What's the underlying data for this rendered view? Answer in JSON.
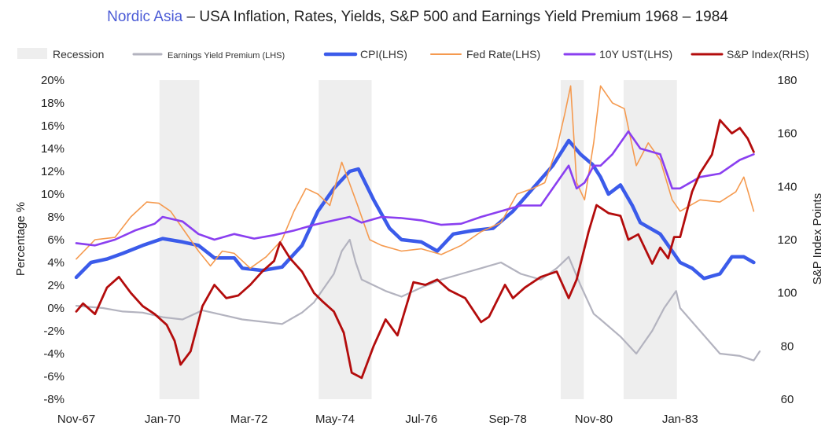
{
  "title": {
    "brand": "Nordic Asia",
    "rest": " – USA Inflation, Rates, Yields, S&P 500 and Earnings Yield Premium 1968 – 1984"
  },
  "legend": [
    {
      "key": "recession",
      "label": "Recession"
    },
    {
      "key": "eyp",
      "label": "Earnings Yield Premium (LHS)"
    },
    {
      "key": "cpi",
      "label": "CPI(LHS)"
    },
    {
      "key": "fed",
      "label": "Fed Rate(LHS)"
    },
    {
      "key": "ust",
      "label": "10Y UST(LHS)"
    },
    {
      "key": "sp",
      "label": "S&P Index(RHS)"
    }
  ],
  "colors": {
    "recession": "#eeeeee",
    "eyp": "#b3b3bf",
    "cpi": "#3b5bea",
    "fed": "#f59a4f",
    "ust": "#8a3ff0",
    "sp": "#b30c0c",
    "text": "#222222"
  },
  "chart_data": {
    "type": "line",
    "title": "USA Inflation, Rates, Yields, S&P 500 and Earnings Yield Premium 1968 – 1984",
    "ylabel": "Percentage %",
    "y2label": "S&P Index Points",
    "ylim": [
      -8,
      20
    ],
    "y2lim": [
      60,
      180
    ],
    "xlim": [
      1967.83,
      1985.0
    ],
    "grid": false,
    "legend_position": "top",
    "x_ticks": [
      {
        "label": "Nov-67",
        "x": 1967.83
      },
      {
        "label": "Jan-70",
        "x": 1970.0
      },
      {
        "label": "Mar-72",
        "x": 1972.17
      },
      {
        "label": "May-74",
        "x": 1974.33
      },
      {
        "label": "Jul-76",
        "x": 1976.5
      },
      {
        "label": "Sep-78",
        "x": 1978.67
      },
      {
        "label": "Nov-80",
        "x": 1980.83
      },
      {
        "label": "Jan-83",
        "x": 1983.0
      }
    ],
    "y_ticks": [
      "-8%",
      "-6%",
      "-4%",
      "-2%",
      "0%",
      "2%",
      "4%",
      "6%",
      "8%",
      "10%",
      "12%",
      "14%",
      "16%",
      "18%",
      "20%"
    ],
    "y2_ticks": [
      "60",
      "80",
      "100",
      "120",
      "140",
      "160",
      "180"
    ],
    "recessions": [
      [
        1969.92,
        1970.92
      ],
      [
        1973.92,
        1975.25
      ],
      [
        1980.0,
        1980.58
      ],
      [
        1981.58,
        1982.92
      ]
    ],
    "series": [
      {
        "name": "Earnings Yield Premium (LHS)",
        "axis": "left",
        "x": [
          1967.83,
          1968.5,
          1969.0,
          1969.5,
          1970.0,
          1970.5,
          1971.0,
          1971.5,
          1972.0,
          1972.5,
          1973.0,
          1973.5,
          1973.8,
          1974.0,
          1974.3,
          1974.5,
          1974.7,
          1974.85,
          1975.0,
          1975.3,
          1975.6,
          1976.0,
          1976.5,
          1977.0,
          1977.5,
          1978.0,
          1978.5,
          1979.0,
          1979.5,
          1979.9,
          1980.2,
          1980.5,
          1980.83,
          1981.0,
          1981.5,
          1981.9,
          1982.3,
          1982.6,
          1982.9,
          1983.0,
          1983.5,
          1984.0,
          1984.5,
          1984.85,
          1985.0
        ],
        "values": [
          0.2,
          0.0,
          -0.3,
          -0.4,
          -0.8,
          -1.0,
          -0.2,
          -0.6,
          -1.0,
          -1.2,
          -1.4,
          -0.4,
          0.5,
          1.5,
          3.0,
          5.0,
          6.0,
          4.0,
          2.5,
          2.0,
          1.5,
          1.0,
          1.8,
          2.5,
          3.0,
          3.5,
          4.0,
          3.0,
          2.5,
          3.5,
          4.5,
          2.0,
          -0.5,
          -1.0,
          -2.5,
          -4.0,
          -2.0,
          0.0,
          1.5,
          0.0,
          -2.0,
          -4.0,
          -4.2,
          -4.6,
          -3.8
        ]
      },
      {
        "name": "CPI(LHS)",
        "axis": "left",
        "x": [
          1967.83,
          1968.2,
          1968.6,
          1969.0,
          1969.5,
          1970.0,
          1970.5,
          1970.9,
          1971.3,
          1971.8,
          1972.0,
          1972.5,
          1973.0,
          1973.5,
          1973.9,
          1974.3,
          1974.7,
          1974.92,
          1975.3,
          1975.7,
          1976.0,
          1976.5,
          1976.9,
          1977.3,
          1977.8,
          1978.3,
          1978.8,
          1979.3,
          1979.8,
          1980.2,
          1980.5,
          1980.8,
          1981.0,
          1981.2,
          1981.5,
          1981.8,
          1982.0,
          1982.5,
          1982.8,
          1983.0,
          1983.3,
          1983.6,
          1984.0,
          1984.3,
          1984.6,
          1984.85
        ],
        "values": [
          2.7,
          4.0,
          4.3,
          4.8,
          5.5,
          6.1,
          5.8,
          5.5,
          4.4,
          4.4,
          3.5,
          3.3,
          3.6,
          5.5,
          8.5,
          10.5,
          12.0,
          12.2,
          9.5,
          7.0,
          6.0,
          5.8,
          5.0,
          6.5,
          6.8,
          7.0,
          8.5,
          10.5,
          12.5,
          14.7,
          13.5,
          12.6,
          11.5,
          10.0,
          10.8,
          9.0,
          7.5,
          6.5,
          5.0,
          4.0,
          3.5,
          2.6,
          3.0,
          4.5,
          4.5,
          4.0
        ]
      },
      {
        "name": "Fed Rate(LHS)",
        "axis": "left",
        "x": [
          1967.83,
          1968.3,
          1968.8,
          1969.2,
          1969.6,
          1969.9,
          1970.2,
          1970.5,
          1970.9,
          1971.2,
          1971.5,
          1971.8,
          1972.2,
          1972.6,
          1973.0,
          1973.3,
          1973.6,
          1973.9,
          1974.2,
          1974.5,
          1974.9,
          1975.2,
          1975.5,
          1976.0,
          1976.5,
          1977.0,
          1977.5,
          1978.0,
          1978.5,
          1978.9,
          1979.3,
          1979.6,
          1979.9,
          1980.1,
          1980.25,
          1980.4,
          1980.6,
          1980.83,
          1981.0,
          1981.3,
          1981.6,
          1981.9,
          1982.2,
          1982.5,
          1982.8,
          1983.0,
          1983.5,
          1984.0,
          1984.4,
          1984.6,
          1984.85
        ],
        "values": [
          4.3,
          6.0,
          6.2,
          8.0,
          9.3,
          9.2,
          8.5,
          7.0,
          5.0,
          3.7,
          5.0,
          4.8,
          3.5,
          4.5,
          6.0,
          8.5,
          10.5,
          10.0,
          9.0,
          12.8,
          9.0,
          6.0,
          5.5,
          5.0,
          5.2,
          4.7,
          5.5,
          6.7,
          7.5,
          10.0,
          10.5,
          11.0,
          14.0,
          17.0,
          19.5,
          11.0,
          9.5,
          14.5,
          19.5,
          18.0,
          17.5,
          12.5,
          14.5,
          13.0,
          9.5,
          8.5,
          9.5,
          9.3,
          10.2,
          11.5,
          8.5
        ]
      },
      {
        "name": "10Y UST(LHS)",
        "axis": "left",
        "x": [
          1967.83,
          1968.3,
          1968.8,
          1969.3,
          1969.8,
          1970.0,
          1970.5,
          1970.9,
          1971.3,
          1971.8,
          1972.3,
          1972.8,
          1973.3,
          1973.8,
          1974.3,
          1974.7,
          1975.0,
          1975.5,
          1976.0,
          1976.5,
          1977.0,
          1977.5,
          1978.0,
          1978.5,
          1979.0,
          1979.5,
          1979.8,
          1980.2,
          1980.4,
          1980.6,
          1980.83,
          1981.0,
          1981.3,
          1981.7,
          1982.0,
          1982.5,
          1982.8,
          1983.0,
          1983.5,
          1984.0,
          1984.5,
          1984.85
        ],
        "values": [
          5.7,
          5.5,
          6.0,
          6.8,
          7.4,
          8.0,
          7.6,
          6.5,
          6.0,
          6.5,
          6.1,
          6.4,
          6.8,
          7.3,
          7.7,
          8.0,
          7.5,
          8.0,
          7.9,
          7.7,
          7.3,
          7.4,
          8.0,
          8.5,
          9.0,
          9.0,
          10.5,
          12.5,
          10.5,
          11.0,
          12.5,
          12.5,
          13.5,
          15.5,
          14.0,
          13.5,
          10.5,
          10.5,
          11.5,
          11.8,
          13.0,
          13.5
        ]
      },
      {
        "name": "S&P Index(RHS)",
        "axis": "right",
        "x": [
          1967.83,
          1968.0,
          1968.3,
          1968.6,
          1968.9,
          1969.2,
          1969.5,
          1969.8,
          1970.1,
          1970.3,
          1970.45,
          1970.7,
          1971.0,
          1971.3,
          1971.6,
          1971.9,
          1972.2,
          1972.5,
          1972.8,
          1972.95,
          1973.2,
          1973.5,
          1973.8,
          1974.0,
          1974.3,
          1974.55,
          1974.75,
          1975.0,
          1975.3,
          1975.6,
          1975.9,
          1976.3,
          1976.6,
          1976.9,
          1977.2,
          1977.6,
          1978.0,
          1978.2,
          1978.6,
          1978.8,
          1979.1,
          1979.5,
          1979.9,
          1980.2,
          1980.4,
          1980.7,
          1980.9,
          1981.2,
          1981.5,
          1981.7,
          1981.95,
          1982.3,
          1982.5,
          1982.7,
          1982.85,
          1983.0,
          1983.3,
          1983.5,
          1983.8,
          1984.0,
          1984.3,
          1984.5,
          1984.7,
          1984.85
        ],
        "values": [
          93,
          96,
          92,
          102,
          106,
          100,
          95,
          92,
          88,
          82,
          73,
          78,
          95,
          103,
          98,
          99,
          103,
          108,
          112,
          119,
          113,
          108,
          100,
          97,
          93,
          85,
          70,
          68,
          80,
          90,
          84,
          104,
          103,
          105,
          101,
          98,
          89,
          91,
          103,
          98,
          102,
          106,
          108,
          98,
          105,
          123,
          133,
          130,
          129,
          120,
          122,
          111,
          117,
          113,
          121,
          121,
          138,
          145,
          152,
          165,
          160,
          162,
          158,
          153
        ]
      }
    ]
  }
}
